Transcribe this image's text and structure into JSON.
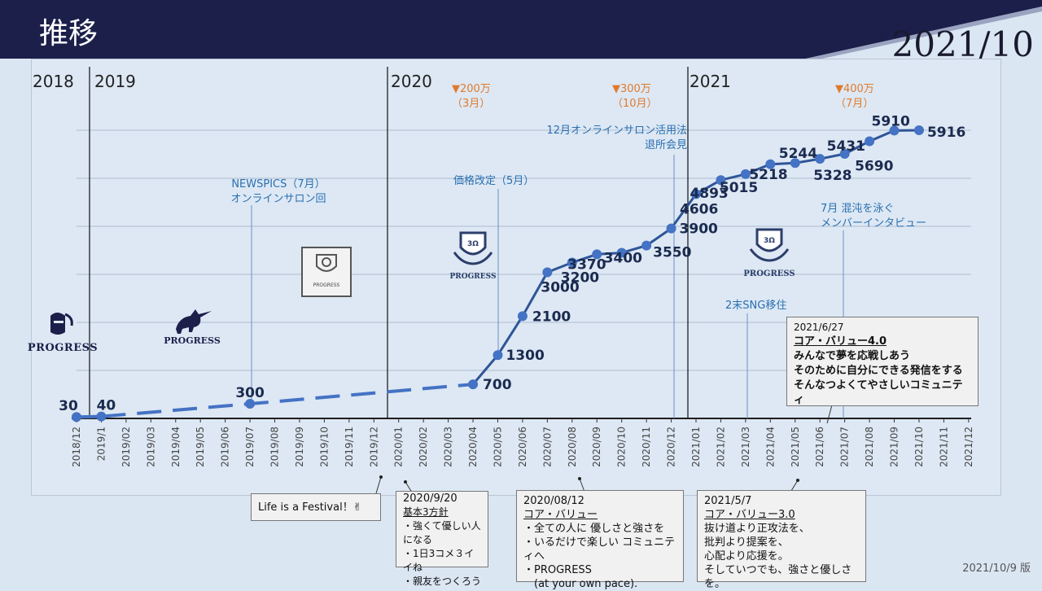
{
  "header": {
    "title": "推移",
    "date": "2021/10"
  },
  "years": [
    "2018",
    "2019",
    "2020",
    "2021"
  ],
  "milestones": [
    {
      "mark": "▼200万",
      "sub": "（3月）"
    },
    {
      "mark": "▼300万",
      "sub": "（10月）"
    },
    {
      "mark": "▼400万",
      "sub": "（7月）"
    }
  ],
  "notes": {
    "newspics": [
      "NEWSPICS（7月）",
      "オンラインサロン回"
    ],
    "price": "価格改定（5月）",
    "salon": [
      "12月オンラインサロン活用法",
      "退所会見"
    ],
    "move": "2末SNG移住",
    "interview": [
      "7月 混沌を泳ぐ",
      "メンバーインタビュー"
    ]
  },
  "boxes": {
    "festival": "Life is a Festival！✌",
    "policy": {
      "date": "2020/9/20",
      "title": "基本3方針",
      "lines": [
        "・強くて優しい人になる",
        "・1日3コメ３イイね",
        "・親友をつくろう"
      ]
    },
    "value1": {
      "date": "2020/08/12",
      "title": "コア・バリュー",
      "lines": [
        "・全ての人に  優しさと強さを",
        "・いるだけで楽しい  コミュニティへ",
        "・PROGRESS",
        "　(at your own pace)."
      ]
    },
    "value3": {
      "date": "2021/5/7",
      "title": "コア・バリュー3.0",
      "lines": [
        "抜け道より正攻法を、",
        "批判より提案を、",
        "心配より応援を。",
        "そしていつでも、強さと優しさを。"
      ]
    },
    "value4": {
      "date": "2021/6/27",
      "title": "コア・バリュー4.0",
      "lines": [
        "みんなで夢を応戦しあう",
        "そのために自分にできる発信をする",
        "そんなつよくてやさしいコミュニティ"
      ]
    }
  },
  "logos": {
    "l1": "PROGRESS",
    "l2": "PROGRESS",
    "l3": "PROGRESS",
    "l4": "PROGRESS",
    "l5": "PROGRESS"
  },
  "version": "2021/10/9 版",
  "colors": {
    "header": "#1b1f4a",
    "line": "#2f5597",
    "point": "#4472c4",
    "milestone": "#e07a2a",
    "note": "#2a6fb0"
  },
  "chart_data": {
    "type": "line",
    "categories": [
      "2018/12",
      "2019/1",
      "2019/02",
      "2019/03",
      "2019/04",
      "2019/05",
      "2019/06",
      "2019/07",
      "2019/08",
      "2019/09",
      "2019/10",
      "2019/11",
      "2019/12",
      "2020/01",
      "2020/02",
      "2020/03",
      "2020/04",
      "2020/05",
      "2020/06",
      "2020/07",
      "2020/08",
      "2020/09",
      "2020/10",
      "2020/11",
      "2020/12",
      "2021/01",
      "2021/02",
      "2021/03",
      "2021/04",
      "2021/05",
      "2021/06",
      "2021/07",
      "2021/08",
      "2021/09",
      "2021/10",
      "2021/11",
      "2021/12"
    ],
    "points": [
      {
        "x": "2018/12",
        "value": 30,
        "label": "30"
      },
      {
        "x": "2019/1",
        "value": 40,
        "label": "40"
      },
      {
        "x": "2019/07",
        "value": 300,
        "label": "300"
      },
      {
        "x": "2020/04",
        "value": 700,
        "label": "700"
      },
      {
        "x": "2020/05",
        "value": 1300,
        "label": "1300"
      },
      {
        "x": "2020/06",
        "value": 2100,
        "label": "2100"
      },
      {
        "x": "2020/07",
        "value": 3000,
        "label": "3000"
      },
      {
        "x": "2020/08",
        "value": 3200,
        "label": "3200"
      },
      {
        "x": "2020/09",
        "value": 3370,
        "label": "3370"
      },
      {
        "x": "2020/10",
        "value": 3400,
        "label": "3400"
      },
      {
        "x": "2020/11",
        "value": 3550,
        "label": "3550"
      },
      {
        "x": "2020/12",
        "value": 3900,
        "label": "3900"
      },
      {
        "x": "2021/01",
        "value": 4606,
        "label": "4606"
      },
      {
        "x": "2021/02",
        "value": 4893,
        "label": "4893"
      },
      {
        "x": "2021/03",
        "value": 5015,
        "label": "5015"
      },
      {
        "x": "2021/04",
        "value": 5218,
        "label": "5218"
      },
      {
        "x": "2021/05",
        "value": 5244,
        "label": "5244"
      },
      {
        "x": "2021/06",
        "value": 5328,
        "label": "5328"
      },
      {
        "x": "2021/07",
        "value": 5431,
        "label": "5431"
      },
      {
        "x": "2021/08",
        "value": 5690,
        "label": "5690"
      },
      {
        "x": "2021/09",
        "value": 5910,
        "label": "5910"
      },
      {
        "x": "2021/10",
        "value": 5916,
        "label": "5916"
      }
    ],
    "dashed_segment": [
      "2019/1",
      "2020/04"
    ],
    "grid": true
  }
}
